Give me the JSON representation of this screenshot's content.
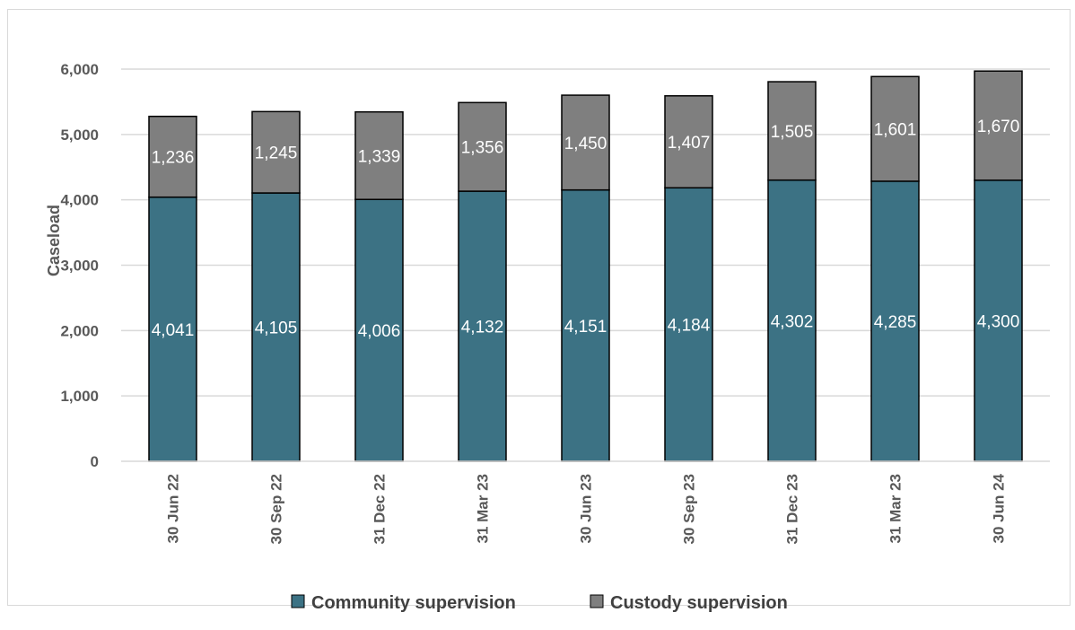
{
  "chart_data": {
    "type": "bar",
    "stacked": true,
    "title": "",
    "xlabel": "",
    "ylabel": "Caseload",
    "ylim": [
      0,
      6000
    ],
    "yticks": [
      0,
      1000,
      2000,
      3000,
      4000,
      5000,
      6000
    ],
    "ytick_labels": [
      "0",
      "1,000",
      "2,000",
      "3,000",
      "4,000",
      "5,000",
      "6,000"
    ],
    "grid": "horizontal",
    "legend_position": "bottom-center",
    "categories": [
      "30 Jun 22",
      "30 Sep 22",
      "31 Dec 22",
      "31 Mar 23",
      "30 Jun 23",
      "30 Sep 23",
      "31 Dec 23",
      "31 Mar 23",
      "30 Jun 24"
    ],
    "series": [
      {
        "name": "Community supervision",
        "color": "#3c7284",
        "values": [
          4041,
          4105,
          4006,
          4132,
          4151,
          4184,
          4302,
          4285,
          4300
        ],
        "labels": [
          "4,041",
          "4,105",
          "4,006",
          "4,132",
          "4,151",
          "4,184",
          "4,302",
          "4,285",
          "4,300"
        ]
      },
      {
        "name": "Custody supervision",
        "color": "#7f7f7f",
        "values": [
          1236,
          1245,
          1339,
          1356,
          1450,
          1407,
          1505,
          1601,
          1670
        ],
        "labels": [
          "1,236",
          "1,245",
          "1,339",
          "1,356",
          "1,450",
          "1,407",
          "1,505",
          "1,601",
          "1,670"
        ]
      }
    ]
  }
}
